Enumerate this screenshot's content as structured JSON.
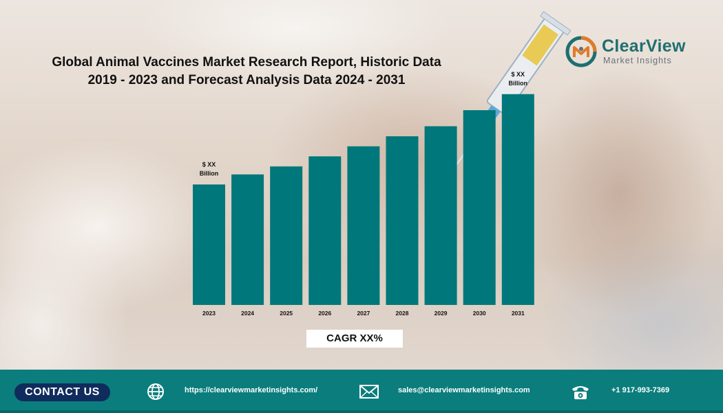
{
  "title": {
    "line1": "Global Animal Vaccines Market Research Report, Historic Data",
    "line2": "2019 - 2023 and Forecast Analysis Data 2024 - 2031"
  },
  "logo": {
    "name": "ClearView",
    "subtitle": "Market Insights",
    "colors": {
      "teal": "#1f6f6f",
      "orange": "#e07b2a",
      "gray": "#6a6e7a"
    }
  },
  "chart_data": {
    "type": "bar",
    "categories": [
      "2023",
      "2024",
      "2025",
      "2026",
      "2027",
      "2028",
      "2029",
      "2030",
      "2031"
    ],
    "values": [
      30,
      32.5,
      34.5,
      37,
      39.5,
      42,
      44.5,
      48.5,
      52.5
    ],
    "bar_color": "#00777a",
    "ylim": [
      0,
      60
    ],
    "annotations": [
      {
        "category": "2023",
        "line1": "$ XX",
        "line2": "Billion"
      },
      {
        "category": "2031",
        "line1": "$ XX",
        "line2": "Billion"
      }
    ],
    "title": "",
    "xlabel": "",
    "ylabel": "",
    "grid": false
  },
  "cagr": "CAGR XX%",
  "footer": {
    "contact_label": "CONTACT US",
    "website": "https://clearviewmarketinsights.com/",
    "email": "sales@clearviewmarketinsights.com",
    "phone": "+1 917-993-7369",
    "icons": [
      "globe-icon",
      "mail-icon",
      "phone-icon"
    ],
    "colors": {
      "bar": "#0b7d7d",
      "button": "#0f2c5c"
    }
  }
}
